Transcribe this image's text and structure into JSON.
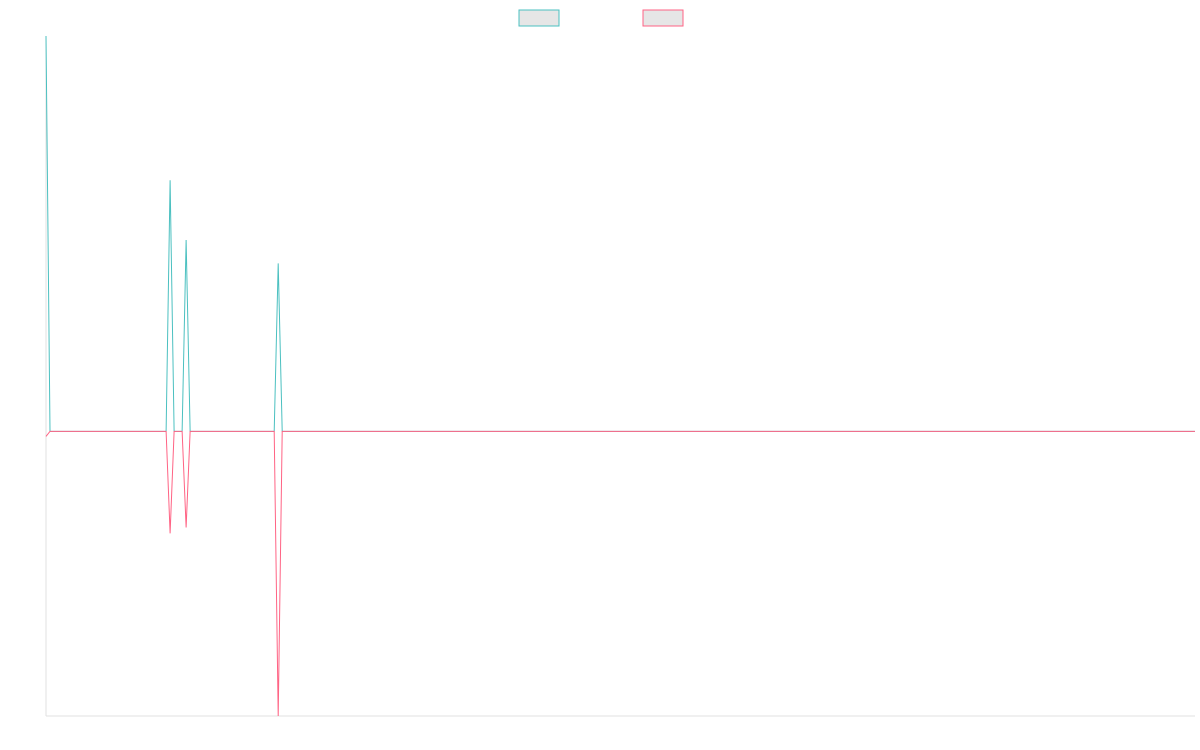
{
  "chart_data": {
    "type": "line",
    "x": [
      0,
      1,
      30,
      31,
      32,
      34,
      35,
      36,
      57,
      58,
      59,
      287
    ],
    "series": [
      {
        "color": "#4bc0c0",
        "values": [
          1,
          0,
          0,
          0.635,
          0,
          0,
          0.484,
          0,
          0,
          0.425,
          0,
          0
        ]
      },
      {
        "color": "#ff6384",
        "values": [
          -0.013,
          0,
          0,
          -0.258,
          0,
          0,
          -0.243,
          0,
          0,
          -0.72,
          0,
          0
        ]
      }
    ],
    "xlim": [
      0,
      287
    ],
    "ylim": [
      -0.72,
      1
    ],
    "legend": "top"
  }
}
